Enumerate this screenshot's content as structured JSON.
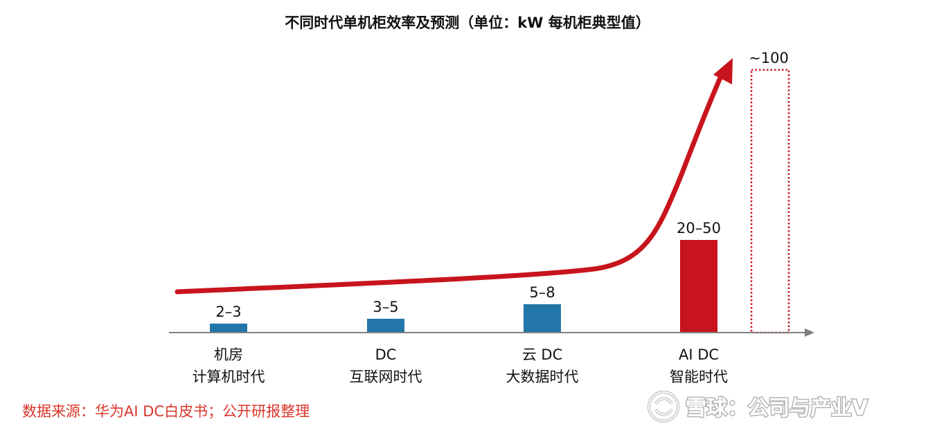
{
  "chart_data": {
    "type": "bar",
    "title": "不同时代单机柜效率及预测（单位：kW 每机柜典型值）",
    "categories": [
      {
        "line1": "机房",
        "line2": "计算机时代"
      },
      {
        "line1": "DC",
        "line2": "互联网时代"
      },
      {
        "line1": "云 DC",
        "line2": "大数据时代"
      },
      {
        "line1": "AI DC",
        "line2": "智能时代"
      },
      {
        "line1": "",
        "line2": ""
      }
    ],
    "value_labels": [
      "2–3",
      "3–5",
      "5–8",
      "20–50",
      "~100"
    ],
    "values": [
      2.5,
      4,
      6.5,
      35,
      100
    ],
    "bar_styles": [
      "solid",
      "solid",
      "solid",
      "solid",
      "dotted-outline"
    ],
    "bar_colors": [
      "#2276a8",
      "#2276a8",
      "#2276a8",
      "#c8141c",
      "#c8141c"
    ],
    "trend_color": "#c8141c",
    "axis_color": "#7f7f7f",
    "legend": "none",
    "grid": false
  },
  "source_note": "数据来源：华为AI DC白皮书；公开研报整理",
  "watermark": "雪球：公司与产业V",
  "colors": {
    "source_text": "#d9362b",
    "watermark": "#ffffff",
    "watermark_shadow": "#b5b5b5"
  }
}
